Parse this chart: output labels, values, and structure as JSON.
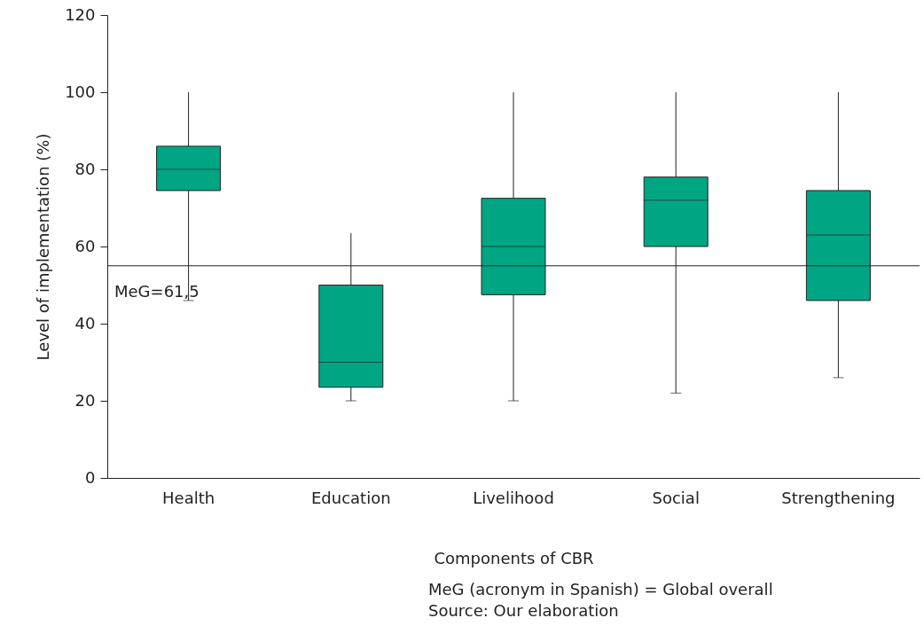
{
  "chart_data": {
    "type": "box",
    "xlabel": "Components of CBR",
    "ylabel": "Level of implementation (%)",
    "categories": [
      "Health",
      "Education",
      "Livelihood",
      "Social",
      "Strengthening"
    ],
    "color": "#00a683",
    "boxes": [
      {
        "low": 46,
        "q1": 74.5,
        "median": 80,
        "q3": 86,
        "high": 100
      },
      {
        "low": 20,
        "q1": 23.5,
        "median": 30,
        "q3": 50,
        "high": 63.5
      },
      {
        "low": 20,
        "q1": 47.5,
        "median": 60,
        "q3": 72.5,
        "high": 100
      },
      {
        "low": 22,
        "q1": 60,
        "median": 72,
        "q3": 78,
        "high": 100
      },
      {
        "low": 26,
        "q1": 46,
        "median": 63,
        "q3": 74.5,
        "high": 100
      }
    ],
    "ylim": [
      0,
      120
    ],
    "yticks": [
      0,
      20,
      40,
      60,
      80,
      100,
      120
    ],
    "grid": false,
    "ref_lines": [
      {
        "axis": "y",
        "value": 55
      }
    ],
    "annotations": [
      "MeG=61,5",
      "MeG (acronym in Spanish) = Global overall",
      "Source: Our elaboration"
    ]
  }
}
